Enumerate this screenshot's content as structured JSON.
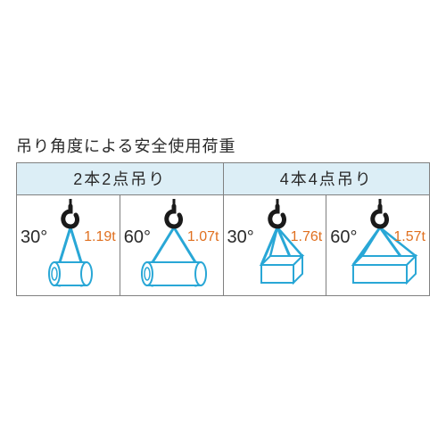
{
  "title": "吊り角度による安全使用荷重",
  "colors": {
    "header_bg": "#dceef6",
    "border": "#808080",
    "text": "#2a2a2a",
    "load_text": "#e07020",
    "sling": "#29a7d6",
    "hook": "#1a1a1a",
    "cylinder_fill": "#ffffff",
    "cylinder_stroke": "#29a7d6",
    "box_fill": "#ffffff",
    "box_stroke": "#29a7d6"
  },
  "headers": [
    "2本2点吊り",
    "4本4点吊り"
  ],
  "cells": [
    {
      "angle": "30°",
      "load": "1.19t",
      "shape": "cylinder",
      "spread": 30
    },
    {
      "angle": "60°",
      "load": "1.07t",
      "shape": "cylinder",
      "spread": 60
    },
    {
      "angle": "30°",
      "load": "1.76t",
      "shape": "box",
      "spread": 30
    },
    {
      "angle": "60°",
      "load": "1.57t",
      "shape": "box",
      "spread": 60
    }
  ]
}
